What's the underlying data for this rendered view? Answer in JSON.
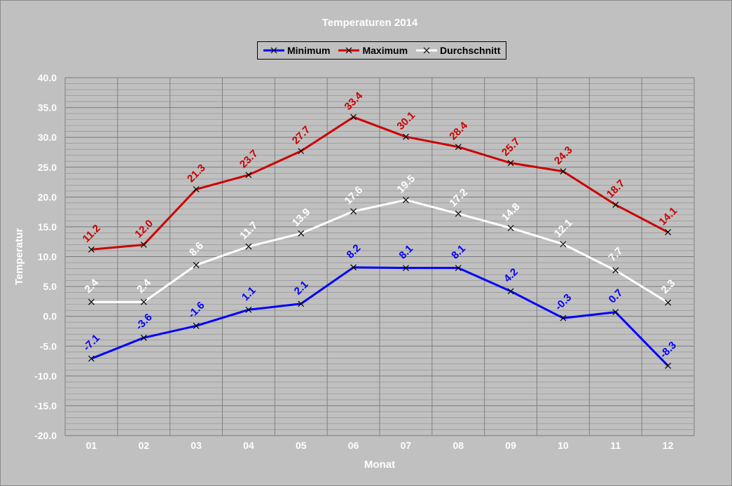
{
  "chart_data": {
    "type": "line",
    "title": "Temperaturen 2014",
    "xlabel": "Monat",
    "ylabel": "Temperatur",
    "categories": [
      "01",
      "02",
      "03",
      "04",
      "05",
      "06",
      "07",
      "08",
      "09",
      "10",
      "11",
      "12"
    ],
    "ylim": [
      -20,
      40
    ],
    "yticks": [
      "40.0",
      "35.0",
      "30.0",
      "25.0",
      "20.0",
      "15.0",
      "10.0",
      "5.0",
      "0.0",
      "-5.0",
      "-10.0",
      "-15.0",
      "-20.0"
    ],
    "grid": true,
    "legend_position": "top-center",
    "series": [
      {
        "name": "Minimum",
        "color": "#0000ff",
        "marker": "x",
        "values": [
          -7.1,
          -3.6,
          -1.6,
          1.1,
          2.1,
          8.2,
          8.1,
          8.1,
          4.2,
          -0.3,
          0.7,
          -8.3
        ],
        "labels": [
          "-7.1",
          "-3.6",
          "-1.6",
          "1.1",
          "2.1",
          "8.2",
          "8.1",
          "8.1",
          "4.2",
          "-0.3",
          "0.7",
          "-8.3"
        ]
      },
      {
        "name": "Maximum",
        "color": "#cc0000",
        "marker": "x",
        "values": [
          11.2,
          12.0,
          21.3,
          23.7,
          27.7,
          33.4,
          30.1,
          28.4,
          25.7,
          24.3,
          18.7,
          14.1
        ],
        "labels": [
          "11.2",
          "12.0",
          "21.3",
          "23.7",
          "27.7",
          "33.4",
          "30.1",
          "28.4",
          "25.7",
          "24.3",
          "18.7",
          "14.1"
        ]
      },
      {
        "name": "Durchschnitt",
        "color": "#ffffff",
        "marker": "x",
        "values": [
          2.4,
          2.4,
          8.6,
          11.7,
          13.9,
          17.6,
          19.5,
          17.2,
          14.8,
          12.1,
          7.7,
          2.3
        ],
        "labels": [
          "2.4",
          "2.4",
          "8.6",
          "11.7",
          "13.9",
          "17.6",
          "19.5",
          "17.2",
          "14.8",
          "12.1",
          "7.7",
          "2.3"
        ]
      }
    ]
  }
}
